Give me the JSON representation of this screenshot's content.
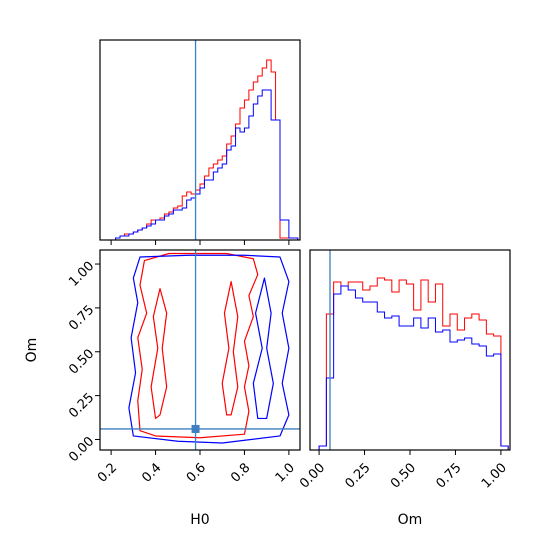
{
  "chart_data": {
    "type": "corner",
    "parameters": [
      "H0",
      "Om"
    ],
    "truth": {
      "H0": 0.58,
      "Om": 0.06
    },
    "colors": {
      "run_a": "#ff0000",
      "run_b": "#0000ff",
      "truth": "#3d7fbf"
    },
    "panels": [
      {
        "id": "H0-marginal",
        "type": "histogram",
        "xlim": [
          0.15,
          1.05
        ],
        "ylim": [
          0,
          1.0
        ],
        "bin_edges": [
          0.22,
          0.24,
          0.26,
          0.28,
          0.3,
          0.32,
          0.34,
          0.36,
          0.38,
          0.4,
          0.42,
          0.44,
          0.46,
          0.48,
          0.5,
          0.52,
          0.54,
          0.56,
          0.58,
          0.6,
          0.62,
          0.64,
          0.66,
          0.68,
          0.7,
          0.72,
          0.74,
          0.76,
          0.78,
          0.8,
          0.82,
          0.84,
          0.86,
          0.88,
          0.9,
          0.92,
          0.94,
          0.96,
          0.98,
          1.0,
          1.02,
          1.04
        ],
        "series": [
          {
            "color": "#ff0000",
            "values": [
              0.01,
              0.02,
              0.03,
              0.03,
              0.04,
              0.05,
              0.06,
              0.08,
              0.1,
              0.1,
              0.11,
              0.13,
              0.14,
              0.16,
              0.17,
              0.22,
              0.24,
              0.23,
              0.25,
              0.28,
              0.32,
              0.36,
              0.38,
              0.4,
              0.42,
              0.48,
              0.52,
              0.58,
              0.66,
              0.7,
              0.75,
              0.79,
              0.82,
              0.86,
              0.9,
              0.84,
              0.6,
              0.01,
              0.01,
              0.01,
              0.01
            ]
          },
          {
            "color": "#0000ff",
            "values": [
              0.01,
              0.02,
              0.02,
              0.03,
              0.04,
              0.05,
              0.06,
              0.07,
              0.08,
              0.1,
              0.1,
              0.12,
              0.13,
              0.15,
              0.15,
              0.16,
              0.2,
              0.21,
              0.23,
              0.26,
              0.3,
              0.3,
              0.34,
              0.36,
              0.38,
              0.45,
              0.47,
              0.56,
              0.54,
              0.56,
              0.62,
              0.68,
              0.72,
              0.75,
              0.75,
              0.6,
              0.6,
              0.1,
              0.1,
              0.01,
              0.01
            ]
          }
        ]
      },
      {
        "id": "Om-marginal",
        "type": "histogram",
        "xlim": [
          -0.05,
          1.05
        ],
        "ylim": [
          0,
          1.0
        ],
        "bin_edges": [
          0.0,
          0.04,
          0.08,
          0.12,
          0.16,
          0.2,
          0.24,
          0.28,
          0.32,
          0.36,
          0.4,
          0.44,
          0.48,
          0.52,
          0.56,
          0.6,
          0.64,
          0.68,
          0.72,
          0.76,
          0.8,
          0.84,
          0.88,
          0.92,
          0.96,
          1.0,
          1.04
        ],
        "series": [
          {
            "color": "#ff0000",
            "values": [
              0.02,
              0.68,
              0.84,
              0.82,
              0.84,
              0.84,
              0.8,
              0.82,
              0.86,
              0.85,
              0.79,
              0.85,
              0.83,
              0.7,
              0.85,
              0.74,
              0.83,
              0.62,
              0.68,
              0.6,
              0.66,
              0.68,
              0.65,
              0.58,
              0.57,
              0.02
            ]
          },
          {
            "color": "#0000ff",
            "values": [
              0.02,
              0.36,
              0.78,
              0.82,
              0.8,
              0.76,
              0.74,
              0.74,
              0.69,
              0.66,
              0.67,
              0.62,
              0.62,
              0.66,
              0.61,
              0.66,
              0.59,
              0.6,
              0.54,
              0.55,
              0.56,
              0.53,
              0.52,
              0.47,
              0.48,
              0.02
            ]
          }
        ]
      },
      {
        "id": "H0-Om-joint",
        "type": "contour",
        "xlim": [
          0.15,
          1.05
        ],
        "ylim": [
          -0.06,
          1.08
        ],
        "contours": [
          {
            "color": "#ff0000",
            "path": [
              [
                0.33,
                0.05
              ],
              [
                0.32,
                0.22
              ],
              [
                0.34,
                0.4
              ],
              [
                0.32,
                0.58
              ],
              [
                0.36,
                0.72
              ],
              [
                0.33,
                0.88
              ],
              [
                0.35,
                1.02
              ],
              [
                0.46,
                1.06
              ],
              [
                0.72,
                1.06
              ],
              [
                0.84,
                1.03
              ],
              [
                0.86,
                0.94
              ],
              [
                0.82,
                0.82
              ],
              [
                0.84,
                0.7
              ],
              [
                0.8,
                0.56
              ],
              [
                0.82,
                0.42
              ],
              [
                0.8,
                0.3
              ],
              [
                0.82,
                0.16
              ],
              [
                0.8,
                0.03
              ],
              [
                0.6,
                0.01
              ],
              [
                0.4,
                0.02
              ],
              [
                0.33,
                0.05
              ]
            ]
          },
          {
            "color": "#ff0000",
            "path": [
              [
                0.4,
                0.12
              ],
              [
                0.38,
                0.3
              ],
              [
                0.41,
                0.52
              ],
              [
                0.39,
                0.7
              ],
              [
                0.42,
                0.86
              ],
              [
                0.45,
                0.72
              ],
              [
                0.43,
                0.52
              ],
              [
                0.45,
                0.3
              ],
              [
                0.42,
                0.14
              ],
              [
                0.4,
                0.12
              ]
            ]
          },
          {
            "color": "#ff0000",
            "path": [
              [
                0.72,
                0.14
              ],
              [
                0.7,
                0.32
              ],
              [
                0.73,
                0.52
              ],
              [
                0.71,
                0.72
              ],
              [
                0.74,
                0.9
              ],
              [
                0.77,
                0.7
              ],
              [
                0.75,
                0.5
              ],
              [
                0.77,
                0.3
              ],
              [
                0.74,
                0.14
              ],
              [
                0.72,
                0.14
              ]
            ]
          },
          {
            "color": "#0000ff",
            "path": [
              [
                0.3,
                0.02
              ],
              [
                0.28,
                0.18
              ],
              [
                0.31,
                0.38
              ],
              [
                0.29,
                0.58
              ],
              [
                0.32,
                0.78
              ],
              [
                0.3,
                0.92
              ],
              [
                0.33,
                1.04
              ],
              [
                0.55,
                1.05
              ],
              [
                0.8,
                1.05
              ],
              [
                0.96,
                1.04
              ],
              [
                1.0,
                0.9
              ],
              [
                0.97,
                0.72
              ],
              [
                1.0,
                0.52
              ],
              [
                0.97,
                0.32
              ],
              [
                1.0,
                0.14
              ],
              [
                0.96,
                0.02
              ],
              [
                0.7,
                -0.02
              ],
              [
                0.5,
                -0.01
              ],
              [
                0.3,
                0.02
              ]
            ]
          },
          {
            "color": "#0000ff",
            "path": [
              [
                0.86,
                0.12
              ],
              [
                0.84,
                0.32
              ],
              [
                0.88,
                0.52
              ],
              [
                0.85,
                0.72
              ],
              [
                0.89,
                0.92
              ],
              [
                0.92,
                0.72
              ],
              [
                0.9,
                0.52
              ],
              [
                0.93,
                0.32
              ],
              [
                0.9,
                0.12
              ],
              [
                0.86,
                0.12
              ]
            ]
          }
        ]
      }
    ],
    "axes": {
      "H0": {
        "label": "H0",
        "ticks": [
          0.2,
          0.4,
          0.6,
          0.8,
          1.0
        ],
        "tick_labels": [
          "0.2",
          "0.4",
          "0.6",
          "0.8",
          "1.0"
        ]
      },
      "Om_y": {
        "label": "Om",
        "ticks": [
          0.0,
          0.25,
          0.5,
          0.75,
          1.0
        ],
        "tick_labels": [
          "0.00",
          "0.25",
          "0.50",
          "0.75",
          "1.00"
        ]
      },
      "Om_x": {
        "label": "Om",
        "ticks": [
          0.0,
          0.25,
          0.5,
          0.75,
          1.0
        ],
        "tick_labels": [
          "0.00",
          "0.25",
          "0.50",
          "0.75",
          "1.00"
        ]
      }
    },
    "grid": false,
    "legend": "none"
  }
}
